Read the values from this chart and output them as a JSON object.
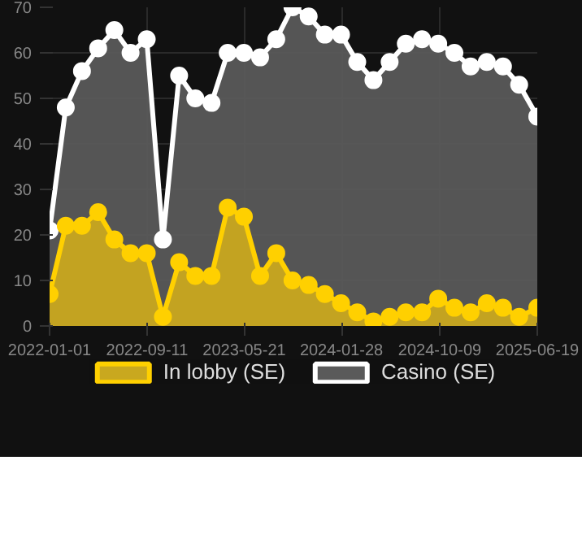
{
  "chart_data": {
    "type": "area",
    "x": [
      "2022-01-01",
      "2022-02-12",
      "2022-03-26",
      "2022-05-07",
      "2022-06-18",
      "2022-07-30",
      "2022-09-10",
      "2022-10-22",
      "2022-12-03",
      "2023-01-14",
      "2023-02-25",
      "2023-04-08",
      "2023-05-20",
      "2023-07-01",
      "2023-08-12",
      "2023-09-23",
      "2023-11-04",
      "2023-12-16",
      "2024-01-27",
      "2024-03-09",
      "2024-04-20",
      "2024-06-01",
      "2024-07-13",
      "2024-08-24",
      "2024-10-05",
      "2024-11-16",
      "2024-12-28",
      "2025-02-08",
      "2025-03-22",
      "2025-05-03",
      "2025-06-19"
    ],
    "series": [
      {
        "name": "In lobby (SE)",
        "color": "#ffd000",
        "values": [
          7,
          22,
          22,
          25,
          19,
          16,
          16,
          2,
          14,
          11,
          11,
          26,
          24,
          11,
          16,
          10,
          9,
          7,
          5,
          3,
          1,
          2,
          3,
          3,
          6,
          4,
          3,
          5,
          4,
          2,
          4
        ]
      },
      {
        "name": "Casino (SE)",
        "color": "#ffffff",
        "values": [
          21,
          48,
          56,
          61,
          65,
          60,
          63,
          19,
          55,
          50,
          49,
          60,
          60,
          59,
          63,
          70,
          68,
          64,
          64,
          58,
          54,
          58,
          62,
          63,
          62,
          60,
          57,
          58,
          57,
          53,
          46
        ]
      }
    ],
    "xlim": [
      "2022-01-01",
      "2025-06-19"
    ],
    "xticks": [
      "2022-01-01",
      "2022-09-11",
      "2023-05-21",
      "2024-01-28",
      "2024-10-09",
      "2025-06-19"
    ],
    "ylim": [
      0,
      70
    ],
    "yticks": [
      0,
      10,
      20,
      30,
      40,
      50,
      60,
      70
    ],
    "grid": true,
    "legend": "bottom",
    "marker": "circle"
  }
}
